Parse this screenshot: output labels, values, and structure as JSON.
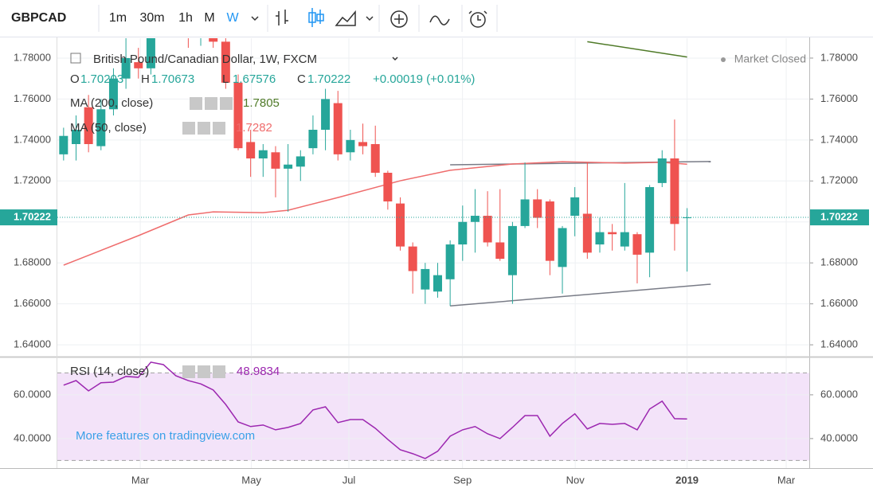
{
  "toolbar": {
    "symbol": "GBPCAD",
    "intervals": [
      "1m",
      "30m",
      "1h",
      "M",
      "W"
    ]
  },
  "chart_data": [
    {
      "type": "candlestick",
      "title": "British Pound/Canadian Dollar, 1W, FXCM",
      "change": "+0.00019 (+0.01%)",
      "status": "Market Closed",
      "x": [
        0,
        1,
        2,
        3,
        4,
        5,
        6,
        7,
        8,
        9,
        10,
        11,
        12,
        13,
        14,
        15,
        16,
        17,
        18,
        19,
        20,
        21,
        22,
        23,
        24,
        25,
        26,
        27,
        28,
        29,
        30,
        31,
        32,
        33,
        34,
        35,
        36,
        37,
        38,
        39,
        40,
        41,
        42,
        43,
        44,
        45,
        46,
        47,
        48,
        49,
        50
      ],
      "open": [
        1.733,
        1.738,
        1.756,
        1.737,
        1.755,
        1.77,
        1.778,
        1.775,
        1.795,
        1.805,
        1.798,
        1.79,
        1.795,
        1.788,
        1.768,
        1.739,
        1.731,
        1.734,
        1.726,
        1.727,
        1.736,
        1.745,
        1.758,
        1.734,
        1.739,
        1.738,
        1.724,
        1.709,
        1.688,
        1.667,
        1.666,
        1.672,
        1.689,
        1.7,
        1.703,
        1.69,
        1.674,
        1.698,
        1.711,
        1.71,
        1.678,
        1.703,
        1.704,
        1.689,
        1.695,
        1.688,
        1.694,
        1.685,
        1.719,
        1.731,
        1.70203
      ],
      "high": [
        1.746,
        1.752,
        1.762,
        1.76,
        1.775,
        1.79,
        1.785,
        1.8,
        1.81,
        1.81,
        1.8,
        1.8,
        1.8,
        1.795,
        1.772,
        1.745,
        1.738,
        1.737,
        1.738,
        1.735,
        1.752,
        1.765,
        1.764,
        1.745,
        1.748,
        1.747,
        1.725,
        1.712,
        1.69,
        1.68,
        1.68,
        1.691,
        1.708,
        1.716,
        1.715,
        1.716,
        1.7,
        1.729,
        1.716,
        1.711,
        1.698,
        1.717,
        1.729,
        1.702,
        1.699,
        1.719,
        1.695,
        1.718,
        1.735,
        1.75,
        1.70673
      ],
      "low": [
        1.73,
        1.73,
        1.734,
        1.735,
        1.752,
        1.765,
        1.77,
        1.772,
        1.79,
        1.79,
        1.785,
        1.786,
        1.785,
        1.765,
        1.735,
        1.722,
        1.722,
        1.712,
        1.705,
        1.72,
        1.733,
        1.735,
        1.73,
        1.73,
        1.733,
        1.722,
        1.706,
        1.686,
        1.665,
        1.66,
        1.663,
        1.659,
        1.681,
        1.685,
        1.688,
        1.681,
        1.66,
        1.697,
        1.697,
        1.674,
        1.665,
        1.693,
        1.682,
        1.685,
        1.686,
        1.686,
        1.67,
        1.673,
        1.717,
        1.686,
        1.67576
      ],
      "close": [
        1.742,
        1.745,
        1.738,
        1.755,
        1.77,
        1.78,
        1.775,
        1.795,
        1.805,
        1.798,
        1.79,
        1.795,
        1.788,
        1.768,
        1.736,
        1.731,
        1.735,
        1.726,
        1.728,
        1.732,
        1.745,
        1.76,
        1.733,
        1.74,
        1.737,
        1.724,
        1.71,
        1.688,
        1.676,
        1.677,
        1.674,
        1.689,
        1.7,
        1.703,
        1.69,
        1.682,
        1.698,
        1.711,
        1.702,
        1.681,
        1.697,
        1.712,
        1.685,
        1.695,
        1.694,
        1.695,
        1.684,
        1.717,
        1.731,
        1.699,
        1.70222
      ],
      "up_color": "#26a69a",
      "down_color": "#ef5350",
      "overlays": [
        {
          "name": "MA (200, close)",
          "color": "#4f7a28",
          "x": [
            42,
            50
          ],
          "values": [
            1.788,
            1.7805
          ]
        },
        {
          "name": "MA (50, close)",
          "color": "#ef6c6c",
          "x": [
            0,
            6,
            10,
            12,
            16,
            18,
            22,
            27,
            31,
            36,
            40,
            45,
            48,
            50
          ],
          "values": [
            1.6789,
            1.6933,
            1.7034,
            1.7049,
            1.7045,
            1.7057,
            1.7119,
            1.7201,
            1.7252,
            1.7283,
            1.7294,
            1.7287,
            1.7291,
            1.7282
          ]
        }
      ],
      "trendlines": [
        {
          "color": "#787b86",
          "x": [
            31,
            51.9
          ],
          "values": [
            1.7279,
            1.7295
          ]
        },
        {
          "color": "#787b86",
          "x": [
            31,
            51.9
          ],
          "values": [
            1.659,
            1.6696
          ]
        }
      ],
      "xlim": [
        -0.5,
        59.8
      ],
      "ylim": [
        1.6346,
        1.7897
      ],
      "yticks": [
        {
          "value": 1.64,
          "label": "1.64000"
        },
        {
          "value": 1.66,
          "label": "1.66000"
        },
        {
          "value": 1.68,
          "label": "1.68000"
        },
        {
          "value": 1.7,
          "label": "1.70000"
        },
        {
          "value": 1.72,
          "label": "1.72000"
        },
        {
          "value": 1.74,
          "label": "1.74000"
        },
        {
          "value": 1.76,
          "label": "1.76000"
        },
        {
          "value": 1.78,
          "label": "1.78000"
        }
      ],
      "grid": true
    },
    {
      "type": "line",
      "annotation": "More features on tradingview.com",
      "series": [
        {
          "name": "RSI (14, close)",
          "color": "#9c27b0",
          "values": [
            64.4,
            66.5,
            61.8,
            65.5,
            65.8,
            68.4,
            68,
            74.9,
            73.8,
            68.7,
            66.5,
            65,
            62.2,
            55.6,
            47.6,
            45.5,
            46.2,
            44,
            45.1,
            46.9,
            53.1,
            54.5,
            47.3,
            48.7,
            48.7,
            44.7,
            39.6,
            34.9,
            33.1,
            30.9,
            34.2,
            41.1,
            44,
            45.5,
            42.2,
            40,
            45.1,
            50.5,
            50.5,
            41.1,
            46.9,
            51.3,
            44.4,
            46.9,
            46.5,
            46.9,
            44,
            53.5,
            57.1,
            49.1,
            48.9834
          ]
        }
      ],
      "x": [
        0,
        1,
        2,
        3,
        4,
        5,
        6,
        7,
        8,
        9,
        10,
        11,
        12,
        13,
        14,
        15,
        16,
        17,
        18,
        19,
        20,
        21,
        22,
        23,
        24,
        25,
        26,
        27,
        28,
        29,
        30,
        31,
        32,
        33,
        34,
        35,
        36,
        37,
        38,
        39,
        40,
        41,
        42,
        43,
        44,
        45,
        46,
        47,
        48,
        49,
        50
      ],
      "bands": [
        30,
        70
      ],
      "band_color": "#f3e3f9",
      "xlim": [
        -0.5,
        59.8
      ],
      "ylim": [
        26.5,
        76.7
      ],
      "xticks": [
        {
          "value": 6.15,
          "label": "Mar"
        },
        {
          "value": 15.06,
          "label": "May"
        },
        {
          "value": 22.88,
          "label": "Jul"
        },
        {
          "value": 31.99,
          "label": "Sep"
        },
        {
          "value": 41.03,
          "label": "Nov"
        },
        {
          "value": 50,
          "label": "2019"
        },
        {
          "value": 57.95,
          "label": "Mar"
        }
      ],
      "yticks": [
        {
          "value": 40,
          "label": "40.0000"
        },
        {
          "value": 60,
          "label": "60.0000"
        }
      ],
      "grid": true
    }
  ]
}
